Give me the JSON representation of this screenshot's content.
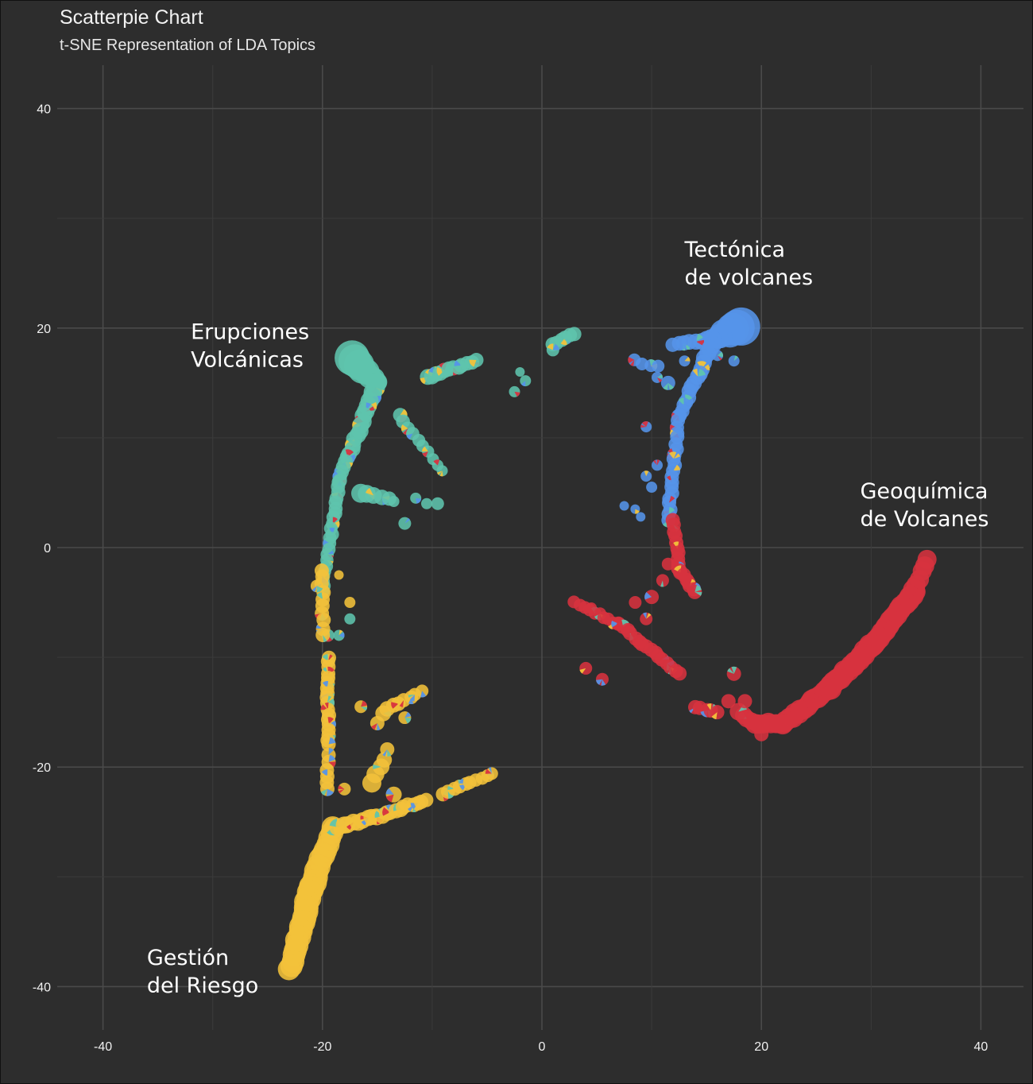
{
  "chart_data": {
    "type": "scatter",
    "title": "Scatterpie Chart",
    "subtitle": "t-SNE Representation of LDA Topics",
    "xlim": [
      -44,
      44
    ],
    "ylim": [
      -44,
      44
    ],
    "x_ticks": [
      -40,
      -20,
      0,
      20,
      40
    ],
    "y_ticks": [
      -40,
      -20,
      0,
      20,
      40
    ],
    "x_tick_labels": [
      "-40",
      "-20",
      "0",
      "20",
      "40"
    ],
    "y_tick_labels": [
      "-40",
      "-20",
      "0",
      "20",
      "40"
    ],
    "grid": true,
    "legend": "none",
    "colors": {
      "Erupciones Volcánicas": "#5fc4ad",
      "Tectónica de volcanes": "#5594e9",
      "Geoquímica de Volcanes": "#d7323f",
      "Gestión del Riesgo": "#f2c23a"
    },
    "annotations": [
      {
        "lines": [
          "Erupciones",
          "Volcánicas"
        ],
        "x": -32,
        "y": 19
      },
      {
        "lines": [
          "Tectónica",
          "de volcanes"
        ],
        "x": 13,
        "y": 26.5
      },
      {
        "lines": [
          "Geoquímica",
          "de Volcanes"
        ],
        "x": 29,
        "y": 4.5
      },
      {
        "lines": [
          "Gestión",
          "del Riesgo"
        ],
        "x": -36,
        "y": -38
      }
    ],
    "series": [
      {
        "topic": "Erupciones Volcánicas",
        "segments": [
          {
            "from": [
              -17.3,
              17.3
            ],
            "to": [
              -15,
              15
            ],
            "n": 8,
            "r0": 22,
            "r1": 12
          },
          {
            "from": [
              -15,
              15
            ],
            "to": [
              -18.5,
              6
            ],
            "n": 22,
            "r0": 12,
            "r1": 9
          },
          {
            "from": [
              -18.5,
              6
            ],
            "to": [
              -20,
              -4
            ],
            "n": 22,
            "r0": 9,
            "r1": 8
          },
          {
            "from": [
              -16,
              15.5
            ],
            "to": [
              -11,
              15.5
            ],
            "n": 0,
            "r0": 0,
            "r1": 0
          },
          {
            "from": [
              -10.5,
              15.5
            ],
            "to": [
              -6,
              17
            ],
            "n": 12,
            "r0": 10,
            "r1": 9
          },
          {
            "from": [
              -13,
              12
            ],
            "to": [
              -9,
              7
            ],
            "n": 10,
            "r0": 9,
            "r1": 7
          },
          {
            "from": [
              -16.5,
              5
            ],
            "to": [
              -14,
              4.5
            ],
            "n": 5,
            "r0": 12,
            "r1": 9
          },
          {
            "from": [
              1,
              18.5
            ],
            "to": [
              3,
              19.5
            ],
            "n": 6,
            "r0": 9,
            "r1": 9
          }
        ],
        "points": [
          [
            -12.5,
            2.2,
            8
          ],
          [
            -13.5,
            4.2,
            7
          ],
          [
            -9.5,
            4,
            8
          ],
          [
            -10.5,
            4,
            7
          ],
          [
            -11.5,
            4.5,
            7
          ],
          [
            -2.5,
            14.2,
            7
          ],
          [
            -1.5,
            15.2,
            7
          ],
          [
            1,
            18,
            8
          ],
          [
            -2,
            16,
            6
          ],
          [
            -17.5,
            -6.5,
            7
          ],
          [
            -19.5,
            -8,
            8
          ],
          [
            -18.5,
            -8,
            7
          ]
        ]
      },
      {
        "topic": "Tectónica de volcanes",
        "segments": [
          {
            "from": [
              18.2,
              20.2
            ],
            "to": [
              15.5,
              19
            ],
            "n": 8,
            "r0": 24,
            "r1": 12
          },
          {
            "from": [
              15.5,
              19
            ],
            "to": [
              12,
              18.5
            ],
            "n": 8,
            "r0": 11,
            "r1": 9
          },
          {
            "from": [
              15.5,
              18.5
            ],
            "to": [
              12.5,
              12
            ],
            "n": 16,
            "r0": 11,
            "r1": 9
          },
          {
            "from": [
              12.5,
              12
            ],
            "to": [
              11.5,
              2.5
            ],
            "n": 20,
            "r0": 9,
            "r1": 9
          },
          {
            "from": [
              8.5,
              17
            ],
            "to": [
              10.5,
              16.5
            ],
            "n": 4,
            "r0": 8,
            "r1": 8
          }
        ],
        "points": [
          [
            11.5,
            15,
            9
          ],
          [
            10.5,
            15.5,
            7
          ],
          [
            9.5,
            11,
            7
          ],
          [
            10.5,
            7.5,
            7
          ],
          [
            9.5,
            6.5,
            7
          ],
          [
            10,
            5.5,
            7
          ],
          [
            7.5,
            3.8,
            6
          ],
          [
            8.5,
            3.5,
            6
          ],
          [
            9,
            2.8,
            6
          ],
          [
            17.5,
            17,
            7
          ],
          [
            16,
            17.5,
            7
          ],
          [
            13,
            17,
            7
          ]
        ]
      },
      {
        "topic": "Geoquímica de Volcanes",
        "segments": [
          {
            "from": [
              35,
              -1
            ],
            "to": [
              34,
              -4
            ],
            "n": 6,
            "r0": 12,
            "r1": 12
          },
          {
            "from": [
              34,
              -4
            ],
            "to": [
              30,
              -9
            ],
            "n": 18,
            "r0": 14,
            "r1": 14
          },
          {
            "from": [
              30,
              -9
            ],
            "to": [
              26,
              -13
            ],
            "n": 18,
            "r0": 14,
            "r1": 14
          },
          {
            "from": [
              26,
              -13
            ],
            "to": [
              22,
              -16
            ],
            "n": 16,
            "r0": 13,
            "r1": 13
          },
          {
            "from": [
              22,
              -16
            ],
            "to": [
              19.5,
              -16
            ],
            "n": 8,
            "r0": 12,
            "r1": 12
          },
          {
            "from": [
              19.5,
              -16
            ],
            "to": [
              18,
              -15
            ],
            "n": 5,
            "r0": 11,
            "r1": 11
          },
          {
            "from": [
              12,
              2.5
            ],
            "to": [
              12.5,
              -2
            ],
            "n": 10,
            "r0": 9,
            "r1": 9
          },
          {
            "from": [
              12.5,
              -2
            ],
            "to": [
              14,
              -4
            ],
            "n": 8,
            "r0": 9,
            "r1": 9
          },
          {
            "from": [
              3,
              -5
            ],
            "to": [
              7,
              -7
            ],
            "n": 10,
            "r0": 8,
            "r1": 8
          },
          {
            "from": [
              7,
              -7
            ],
            "to": [
              12.5,
              -11.5
            ],
            "n": 16,
            "r0": 9,
            "r1": 9
          },
          {
            "from": [
              14,
              -14.5
            ],
            "to": [
              16,
              -15
            ],
            "n": 5,
            "r0": 9,
            "r1": 9
          }
        ],
        "points": [
          [
            11.5,
            -1.5,
            8
          ],
          [
            11,
            -3,
            8
          ],
          [
            9.5,
            -6.5,
            8
          ],
          [
            10,
            -4.5,
            9
          ],
          [
            8.5,
            -5,
            8
          ],
          [
            4.5,
            -5.5,
            7
          ],
          [
            5.5,
            -12,
            8
          ],
          [
            4,
            -11,
            8
          ],
          [
            17.5,
            -11.5,
            9
          ],
          [
            17,
            -14,
            9
          ],
          [
            18.5,
            -14,
            9
          ],
          [
            20,
            -17,
            9
          ]
        ]
      },
      {
        "topic": "Gestión del Riesgo",
        "segments": [
          {
            "from": [
              -20,
              -2
            ],
            "to": [
              -20,
              -8
            ],
            "n": 10,
            "r0": 9,
            "r1": 9
          },
          {
            "from": [
              -19.5,
              -10
            ],
            "to": [
              -19.5,
              -18
            ],
            "n": 18,
            "r0": 9,
            "r1": 9
          },
          {
            "from": [
              -19.5,
              -19
            ],
            "to": [
              -19.5,
              -22
            ],
            "n": 6,
            "r0": 9,
            "r1": 9
          },
          {
            "from": [
              -19,
              -25.5
            ],
            "to": [
              -21,
              -31
            ],
            "n": 12,
            "r0": 14,
            "r1": 16
          },
          {
            "from": [
              -21,
              -31
            ],
            "to": [
              -23,
              -38.5
            ],
            "n": 18,
            "r0": 16,
            "r1": 14
          },
          {
            "from": [
              -19,
              -25.5
            ],
            "to": [
              -15,
              -24.5
            ],
            "n": 10,
            "r0": 11,
            "r1": 10
          },
          {
            "from": [
              -15,
              -24.5
            ],
            "to": [
              -10.5,
              -23
            ],
            "n": 12,
            "r0": 10,
            "r1": 9
          },
          {
            "from": [
              -9,
              -22.5
            ],
            "to": [
              -4.5,
              -20.5
            ],
            "n": 10,
            "r0": 9,
            "r1": 8
          },
          {
            "from": [
              -15.5,
              -21.5
            ],
            "to": [
              -14,
              -18.5
            ],
            "n": 5,
            "r0": 12,
            "r1": 9
          },
          {
            "from": [
              -14.5,
              -15
            ],
            "to": [
              -11,
              -13
            ],
            "n": 8,
            "r0": 10,
            "r1": 8
          }
        ],
        "points": [
          [
            -18,
            -22,
            8
          ],
          [
            -13.5,
            -22.5,
            10
          ],
          [
            -16.5,
            -14.5,
            8
          ],
          [
            -17.5,
            -5,
            7
          ],
          [
            -15,
            -16,
            9
          ],
          [
            -12.5,
            -15.5,
            8
          ],
          [
            -20.5,
            -3.5,
            8
          ],
          [
            -18.5,
            -2.5,
            6
          ]
        ]
      }
    ]
  }
}
